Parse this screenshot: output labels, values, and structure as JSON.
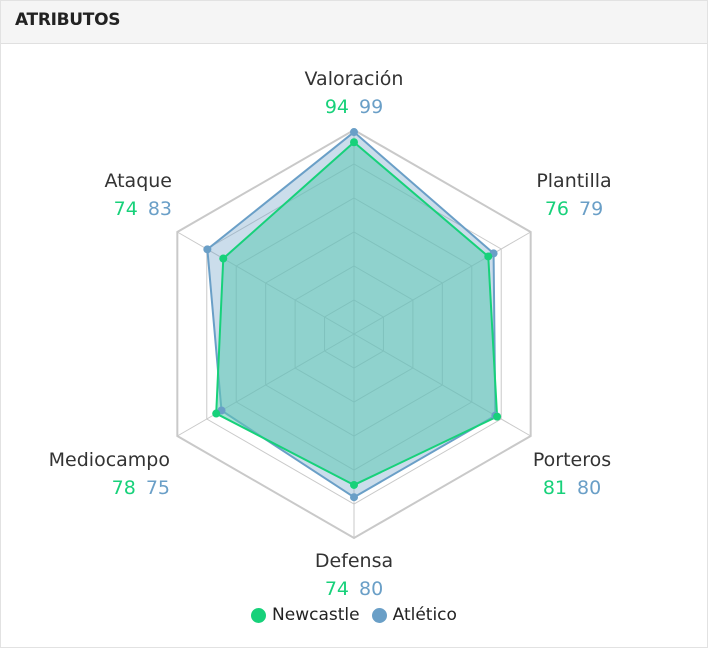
{
  "header": {
    "title": "ATRIBUTOS"
  },
  "chart_data": {
    "type": "radar",
    "title": "",
    "categories": [
      "Valoración",
      "Plantilla",
      "Porteros",
      "Defensa",
      "Mediocampo",
      "Ataque"
    ],
    "range": [
      0,
      100
    ],
    "grid": true,
    "legend_position": "bottom",
    "series": [
      {
        "name": "Newcastle",
        "color": "#17d17a",
        "values": [
          94,
          76,
          81,
          74,
          78,
          74
        ]
      },
      {
        "name": "Atlético",
        "color": "#6a9fc7",
        "values": [
          99,
          79,
          80,
          80,
          75,
          83
        ]
      }
    ]
  },
  "colors": {
    "grid": "#c9c9c9",
    "fill": "#5ec8b4"
  }
}
